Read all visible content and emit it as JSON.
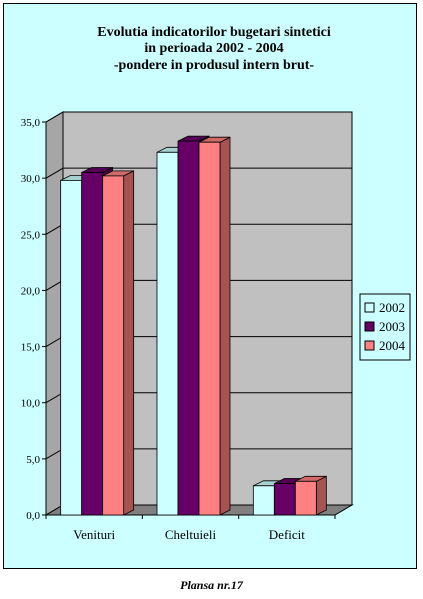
{
  "chart_data": {
    "type": "bar",
    "title": [
      "Evolutia indicatorilor bugetari sintetici",
      "in perioada 2002 - 2004",
      "-pondere in produsul intern brut-"
    ],
    "categories": [
      "Venituri",
      "Cheltuieli",
      "Deficit"
    ],
    "series": [
      {
        "name": "2002",
        "color": "#ccffff",
        "values": [
          29.8,
          32.3,
          2.6
        ]
      },
      {
        "name": "2003",
        "color": "#660066",
        "values": [
          30.5,
          33.3,
          2.8
        ]
      },
      {
        "name": "2004",
        "color": "#ff8080",
        "values": [
          30.2,
          33.2,
          3.0
        ]
      }
    ],
    "y_ticks": [
      "0,0",
      "5,0",
      "10,0",
      "15,0",
      "20,0",
      "25,0",
      "30,0",
      "35,0"
    ],
    "ylim": [
      0,
      35
    ],
    "grid": true,
    "legend_position": "right",
    "plot_wall_color": "#c0c0c0",
    "floor_color": "#808080",
    "chart_bg_color": "#ccffff"
  },
  "caption": "Plansa nr.17"
}
